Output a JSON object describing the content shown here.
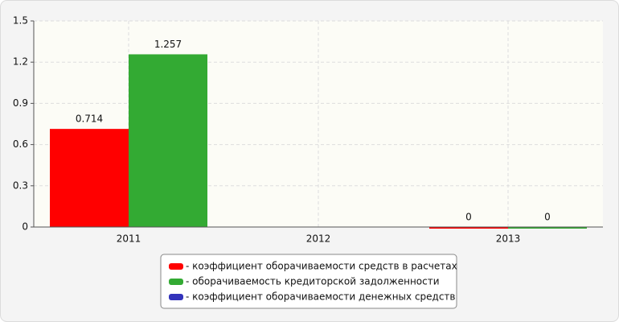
{
  "chart_data": {
    "type": "bar",
    "categories": [
      "2011",
      "2012",
      "2013"
    ],
    "series": [
      {
        "name": "- коэффициент оборачиваемости средств в расчетах",
        "color": "#ff0000",
        "values": [
          0.714,
          null,
          0
        ]
      },
      {
        "name": "- оборачиваемость кредиторской задолженности",
        "color": "#33aa33",
        "values": [
          1.257,
          null,
          0
        ]
      },
      {
        "name": "- коэффициент оборачиваемости денежных средств",
        "color": "#3333bb",
        "values": [
          null,
          null,
          null
        ]
      }
    ],
    "ylim": [
      0,
      1.5
    ],
    "yticks": [
      0,
      0.3,
      0.6,
      0.9,
      1.2,
      1.5
    ],
    "grid": true
  }
}
